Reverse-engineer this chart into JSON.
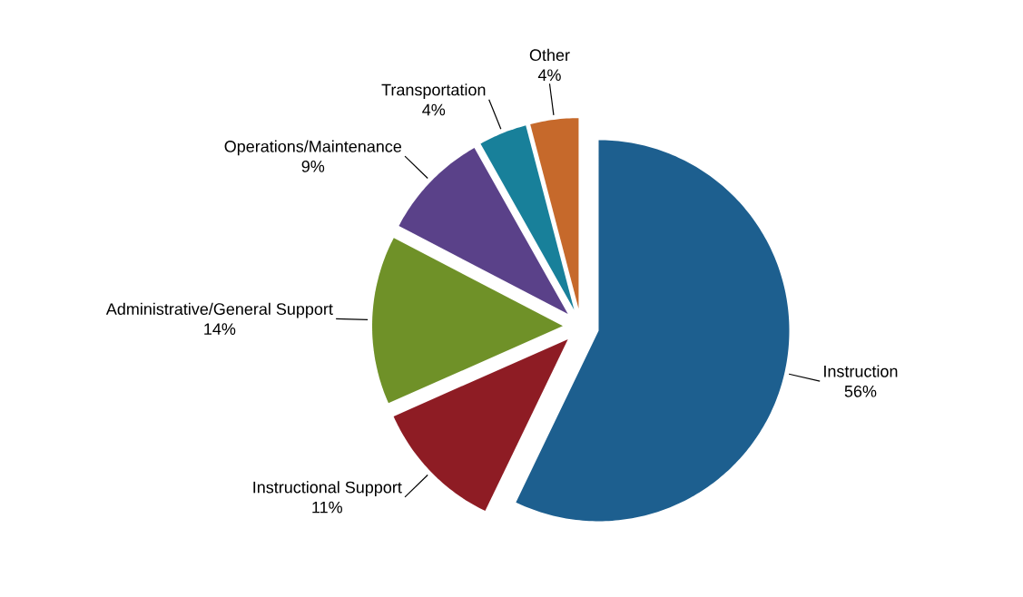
{
  "chart_data": {
    "type": "pie",
    "categories": [
      "Instruction",
      "Instructional Support",
      "Administrative/General Support",
      "Operations/Maintenance",
      "Transportation",
      "Other"
    ],
    "values": [
      56,
      11,
      14,
      9,
      4,
      4
    ],
    "colors": [
      "#1d5f8f",
      "#8e1c24",
      "#6f9128",
      "#5a4189",
      "#18809a",
      "#c6692b"
    ],
    "value_labels": [
      "56%",
      "11%",
      "14%",
      "9%",
      "4%",
      "4%"
    ]
  }
}
